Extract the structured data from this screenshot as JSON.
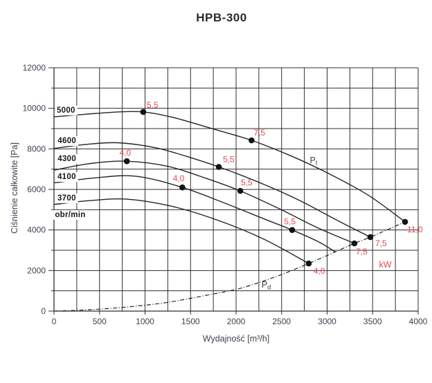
{
  "chart_data": {
    "type": "line",
    "title": "HPB-300",
    "xlabel": "Wydajność [m³/h]",
    "ylabel": "Ciśnienie całkowite [Pa]",
    "x_range": [
      0,
      4000
    ],
    "y_range": [
      0,
      12000
    ],
    "x_grid_step": 250,
    "y_grid_step": 1000,
    "x_tick_labels": [
      0,
      500,
      1000,
      1500,
      2000,
      2500,
      3000,
      3500,
      4000
    ],
    "y_tick_labels": [
      0,
      2000,
      4000,
      6000,
      8000,
      10000,
      12000
    ],
    "legend_position": "curve-labels-left",
    "grid": true,
    "rpm_unit_label": "obr/min",
    "rpm_unit_pos": {
      "q": 10,
      "p": 4640
    },
    "series": [
      {
        "name": "5000",
        "rpm": 5000,
        "label_pos": {
          "q": 30,
          "p": 9790
        },
        "points": [
          [
            0,
            9580
          ],
          [
            350,
            9710
          ],
          [
            700,
            9820
          ],
          [
            980,
            9820
          ],
          [
            1300,
            9560
          ],
          [
            1750,
            8980
          ],
          [
            2170,
            8420
          ],
          [
            2600,
            7660
          ],
          [
            3000,
            6820
          ],
          [
            3450,
            5720
          ],
          [
            3856,
            4400
          ]
        ],
        "power_markers": [
          {
            "kw": "5,5",
            "q": 980,
            "p": 9820,
            "dx": 5,
            "dy": -6
          },
          {
            "kw": "7,5",
            "q": 2170,
            "p": 8420,
            "dx": 3,
            "dy": -7
          },
          {
            "kw": "11,0",
            "q": 3856,
            "p": 4400,
            "dx": 3,
            "dy": 15
          }
        ]
      },
      {
        "name": "4600",
        "rpm": 4600,
        "label_pos": {
          "q": 40,
          "p": 8280
        },
        "points": [
          [
            0,
            8020
          ],
          [
            350,
            8220
          ],
          [
            700,
            8300
          ],
          [
            1100,
            8070
          ],
          [
            1450,
            7640
          ],
          [
            1810,
            7110
          ],
          [
            2250,
            6350
          ],
          [
            2700,
            5450
          ],
          [
            3100,
            4500
          ],
          [
            3475,
            3650
          ]
        ],
        "power_markers": [
          {
            "kw": "5,5",
            "q": 1810,
            "p": 7110,
            "dx": 6,
            "dy": -7
          },
          {
            "kw": "7,5",
            "q": 3475,
            "p": 3650,
            "dx": 7,
            "dy": 13
          }
        ]
      },
      {
        "name": "4300",
        "rpm": 4300,
        "label_pos": {
          "q": 40,
          "p": 7400
        },
        "points": [
          [
            0,
            6950
          ],
          [
            400,
            7280
          ],
          [
            800,
            7390
          ],
          [
            1250,
            7140
          ],
          [
            1650,
            6580
          ],
          [
            2046,
            5930
          ],
          [
            2500,
            4990
          ],
          [
            2900,
            4100
          ],
          [
            3300,
            3340
          ]
        ],
        "power_markers": [
          {
            "kw": "4,0",
            "q": 800,
            "p": 7390,
            "dx": -4,
            "dy": -8
          },
          {
            "kw": "5,5",
            "q": 2046,
            "p": 5930,
            "dx": 1,
            "dy": -8
          },
          {
            "kw": "7,5",
            "q": 3300,
            "p": 3340,
            "dx": 2,
            "dy": 16
          }
        ]
      },
      {
        "name": "4100",
        "rpm": 4100,
        "label_pos": {
          "q": 38,
          "p": 6510
        },
        "points": [
          [
            0,
            6320
          ],
          [
            450,
            6570
          ],
          [
            900,
            6650
          ],
          [
            1410,
            6100
          ],
          [
            1900,
            5280
          ],
          [
            2300,
            4560
          ],
          [
            2616,
            4000
          ],
          [
            2900,
            3430
          ],
          [
            3090,
            2920
          ]
        ],
        "power_markers": [
          {
            "kw": "4,0",
            "q": 1410,
            "p": 6100,
            "dx": -7,
            "dy": -9
          },
          {
            "kw": "5,5",
            "q": 2616,
            "p": 4000,
            "dx": -5,
            "dy": -8
          }
        ]
      },
      {
        "name": "3700",
        "rpm": 3700,
        "label_pos": {
          "q": 38,
          "p": 5460
        },
        "points": [
          [
            0,
            5260
          ],
          [
            400,
            5450
          ],
          [
            800,
            5520
          ],
          [
            1300,
            5160
          ],
          [
            1800,
            4480
          ],
          [
            2300,
            3560
          ],
          [
            2798,
            2350
          ]
        ],
        "power_markers": [
          {
            "kw": "4,0",
            "q": 2798,
            "p": 2350,
            "dx": 7,
            "dy": 15
          }
        ]
      }
    ],
    "pd_curve": {
      "name": "Pd",
      "style": "dash-dot",
      "points": [
        [
          0,
          0
        ],
        [
          400,
          70
        ],
        [
          800,
          200
        ],
        [
          1232,
          420
        ],
        [
          1650,
          760
        ],
        [
          2050,
          1130
        ],
        [
          2450,
          1720
        ],
        [
          2798,
          2350
        ],
        [
          3090,
          2920
        ],
        [
          3300,
          3340
        ],
        [
          3475,
          3650
        ],
        [
          3856,
          4400
        ]
      ]
    },
    "annotations": [
      {
        "text": "P",
        "sub": "t",
        "q": 2810,
        "p": 7300,
        "color": "dark"
      },
      {
        "text": "P",
        "sub": "d",
        "q": 2280,
        "p": 1160,
        "color": "dark"
      },
      {
        "text": "kW",
        "sub": "",
        "q": 3570,
        "p": 2150,
        "color": "red"
      }
    ],
    "colors": {
      "red": "#e84653",
      "curve": "#242428",
      "grid": "#2d2d2f",
      "tick_text": "#3b424e",
      "curve_label_text": "#15171c",
      "dot": "#121316",
      "background": "#ffffff"
    }
  }
}
